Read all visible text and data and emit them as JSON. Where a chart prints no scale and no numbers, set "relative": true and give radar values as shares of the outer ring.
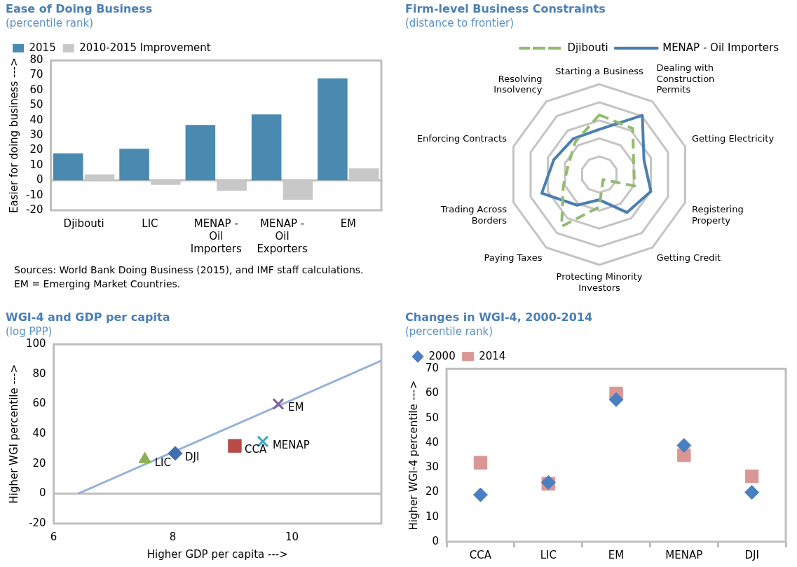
{
  "chart_data": [
    {
      "type": "bar",
      "title": "Ease of Doing Business",
      "subtitle": "(percentile rank)",
      "ylabel": "Easier for doing business --->",
      "categories": [
        "Djibouti",
        "LIC",
        "MENAP - Oil Importers",
        "MENAP - Oil Exporters",
        "EM"
      ],
      "series": [
        {
          "name": "2015",
          "color": "#4a8ab0",
          "values": [
            18,
            21,
            37,
            44,
            68
          ]
        },
        {
          "name": "2010-2015 Improvement",
          "color": "#c8c8c8",
          "values": [
            4,
            -3,
            -7,
            -13,
            8
          ]
        }
      ],
      "ylim": [
        -20,
        80
      ],
      "yticks": [
        -20,
        -10,
        0,
        10,
        20,
        30,
        40,
        50,
        60,
        70,
        80
      ],
      "legend": "top left",
      "ref_lines": [
        {
          "axis": "y",
          "value": 0,
          "color": "#bfbfbf"
        }
      ],
      "annotations": [
        "Sources: World Bank Doing Business (2015), and IMF staff calculations.  EM = Emerging Market Countries."
      ]
    },
    {
      "type": "radar",
      "title": "Firm-level Business Constraints",
      "subtitle": "(distance to frontier)",
      "relative": true,
      "categories": [
        "Starting a Business",
        "Dealing with Construction Permits",
        "Getting Electricity",
        "Registering Property",
        "Getting Credit",
        "Protecting Minority Investors",
        "Paying Taxes",
        "Trading Across Borders",
        "Enforcing Contracts",
        "Resolving Insolvency"
      ],
      "series": [
        {
          "name": "Djibouti",
          "color": "#93bb6e",
          "line_style": "dashed",
          "values": [
            0.66,
            0.63,
            0.4,
            0.41,
            0.07,
            0.36,
            0.71,
            0.42,
            0.36,
            0.45
          ]
        },
        {
          "name": "MENAP - Oil Importers",
          "color": "#4a7fb0",
          "line_style": "solid",
          "values": [
            0.5,
            0.81,
            0.52,
            0.6,
            0.52,
            0.28,
            0.42,
            0.67,
            0.53,
            0.49
          ]
        }
      ],
      "legend": "top right",
      "grid": true
    },
    {
      "type": "scatter",
      "title": "WGI-4 and GDP per capita",
      "subtitle": "(log PPP)",
      "xlabel": "Higher GDP per capita --->",
      "ylabel": "Higher WGI percentile --->",
      "series": [
        {
          "name": "LIC",
          "color": "#8fb04f",
          "marker": "triangle",
          "x": [
            7.53
          ],
          "values": [
            23
          ]
        },
        {
          "name": "DJI",
          "color": "#3f6fae",
          "marker": "diamond",
          "x": [
            8.04
          ],
          "values": [
            27
          ]
        },
        {
          "name": "CCA",
          "color": "#b84a47",
          "marker": "square",
          "x": [
            9.04
          ],
          "values": [
            32
          ]
        },
        {
          "name": "MENAP",
          "color": "#3fa6bd",
          "marker": "cross",
          "x": [
            9.51
          ],
          "values": [
            35
          ]
        },
        {
          "name": "EM",
          "color": "#7b60a0",
          "marker": "cross",
          "x": [
            9.77
          ],
          "values": [
            60
          ]
        },
        {
          "type": "line",
          "color": "#95b3d7",
          "x": [
            6.41,
            11.5
          ],
          "values": [
            0,
            89
          ]
        }
      ],
      "xlim": [
        6,
        11.5
      ],
      "xticks": [
        6,
        8,
        10
      ],
      "ylim": [
        -20,
        100
      ],
      "yticks": [
        -20,
        0,
        20,
        40,
        60,
        80,
        100
      ],
      "ref_lines": [
        {
          "axis": "y",
          "value": 0,
          "color": "#bfbfbf"
        }
      ]
    },
    {
      "type": "scatter",
      "title": "Changes in WGI-4, 2000-2014",
      "subtitle": "(percentile rank)",
      "ylabel": "Higher WGI-4 percentile --->",
      "categories": [
        "CCA",
        "LIC",
        "EM",
        "MENAP",
        "DJI"
      ],
      "series": [
        {
          "name": "2000",
          "color": "#4a7fc1",
          "marker": "diamond",
          "values": [
            19,
            24,
            57.5,
            39,
            20
          ]
        },
        {
          "name": "2014",
          "color": "#d99694",
          "marker": "square",
          "values": [
            32,
            23.5,
            60,
            35,
            26.5
          ]
        }
      ],
      "ylim": [
        0,
        70
      ],
      "yticks": [
        0,
        10,
        20,
        30,
        40,
        50,
        60,
        70
      ],
      "legend": "top left"
    }
  ]
}
